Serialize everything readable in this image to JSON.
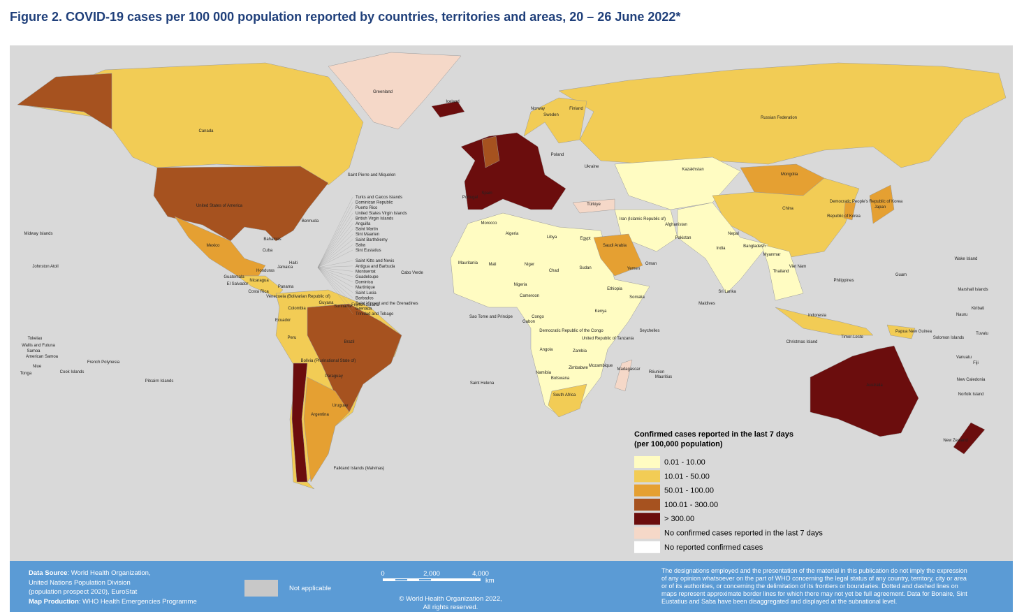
{
  "title": "Figure 2. COVID-19 cases per 100 000 population reported by countries, territories and areas, 20 – 26 June 2022*",
  "map_labels": [
    "Greenland",
    "Iceland",
    "Canada",
    "United States of America",
    "Mexico",
    "Russian Federation",
    "Kazakhstan",
    "Mongolia",
    "China",
    "India",
    "Japan",
    "Brazil",
    "Argentina",
    "Australia",
    "Algeria",
    "Libya",
    "Egypt",
    "Sudan",
    "Chad",
    "Niger",
    "Mali",
    "Nigeria",
    "Ethiopia",
    "Somalia",
    "Kenya",
    "United Republic of Tanzania",
    "Angola",
    "Namibia",
    "Botswana",
    "South Africa",
    "Madagascar",
    "Saudi Arabia",
    "Iran (Islamic Republic of)",
    "Türkiye",
    "Pakistan",
    "Afghanistan",
    "Indonesia",
    "Philippines",
    "Colombia",
    "Peru",
    "Bolivia (Plurinational State of)",
    "Venezuela (Bolivarian Republic of)",
    "Ecuador",
    "Paraguay",
    "Uruguay",
    "Falkland Islands (Malvinas)",
    "Saint Helena",
    "Cuba",
    "Haiti",
    "Jamaica",
    "Guatemala",
    "El Salvador",
    "Honduras",
    "Nicaragua",
    "Costa Rica",
    "Panama",
    "Bermuda",
    "Bahamas",
    "Midway Islands",
    "Johnston Atoll",
    "Tokelau",
    "French Polynesia",
    "Pitcairn Islands",
    "Cook Islands",
    "Niue",
    "Tonga",
    "Saint Pierre and Miquelon",
    "Norway",
    "Sweden",
    "Finland",
    "Poland",
    "Ukraine",
    "Myanmar",
    "Thailand",
    "Viet Nam",
    "Nepal",
    "Bangladesh",
    "Sri Lanka",
    "Democratic People's Republic of Korea",
    "Republic of Korea",
    "Papua New Guinea",
    "New Caledonia",
    "New Zealand",
    "Fiji",
    "Mozambique",
    "Zambia",
    "Zimbabwe",
    "Cameroon",
    "Congo",
    "Democratic Republic of the Congo",
    "Gabon",
    "Guyana",
    "Suriname",
    "French Guiana",
    "Morocco",
    "Spain",
    "Portugal",
    "Wake Island",
    "Marshall Islands",
    "Kiribati",
    "Nauru",
    "Tuvalu",
    "Solomon Islands",
    "Guam",
    "Seychelles",
    "Mauritius",
    "Réunion",
    "Maldives",
    "Christmas Island",
    "Timor-Leste",
    "Samoa",
    "American Samoa",
    "Wallis and Futuna",
    "Vanuatu",
    "Norfolk Island",
    "Mauritania",
    "Oman",
    "Yemen",
    "Cabo Verde",
    "Sao Tome and Principe"
  ],
  "caribbean_labels": [
    "Turks and Caicos Islands",
    "Dominican Republic",
    "Puerto Rico",
    "United States Virgin Islands",
    "British Virgin Islands",
    "Anguilla",
    "Saint Martin",
    "Sint Maarten",
    "Saint Barthélemy",
    "Saba",
    "Sint Eustatius",
    "",
    "Saint Kitts and Nevis",
    "Antigua and Barbuda",
    "Montserrat",
    "Guadeloupe",
    "Dominica",
    "Martinique",
    "Saint Lucia",
    "Barbados",
    "Saint Vincent and the Grenadines",
    "Grenada",
    "Trinidad and Tobago"
  ],
  "legend": {
    "title": [
      "Confirmed cases reported in the last 7 days",
      "(per 100,000 population)"
    ],
    "items": [
      {
        "label": "0.01 - 10.00",
        "color": "#fffcc2"
      },
      {
        "label": "10.01 - 50.00",
        "color": "#f2cc55"
      },
      {
        "label": "50.01 - 100.00",
        "color": "#e5a032"
      },
      {
        "label": "100.01 - 300.00",
        "color": "#a6521f"
      },
      {
        "label": "> 300.00",
        "color": "#6b0d0d"
      },
      {
        "label": "No confirmed cases reported in the last 7 days",
        "color": "#f5d8c8"
      },
      {
        "label": "No reported confirmed cases",
        "color": "#ffffff"
      }
    ]
  },
  "footer": {
    "source_label": "Data Source",
    "source_lines": [
      ": World Health Organization,",
      "United Nations Population Division",
      "(population prospect 2020), EuroStat"
    ],
    "production_label": "Map Production",
    "production_text": ": WHO Health Emergencies Programme",
    "not_applicable": "Not applicable",
    "scale": [
      "0",
      "2,000",
      "4,000",
      "km"
    ],
    "copyright": [
      "© World Health Organization  2022,",
      "All rights reserved."
    ],
    "disclaimer": [
      "The designations employed and the presentation of the material in this publication do not imply the expression",
      "of any opinion whatsoever on the part of WHO concerning the legal status of any country, territory, city or area",
      "or of its authorities, or concerning the delimitation of its frontiers or boundaries. Dotted and dashed lines on",
      "maps represent approximate border lines for which there may not yet be full agreement. Data for Bonaire, Sint",
      "Eustatius and Saba have been disaggregated and displayed at the subnational level."
    ]
  }
}
